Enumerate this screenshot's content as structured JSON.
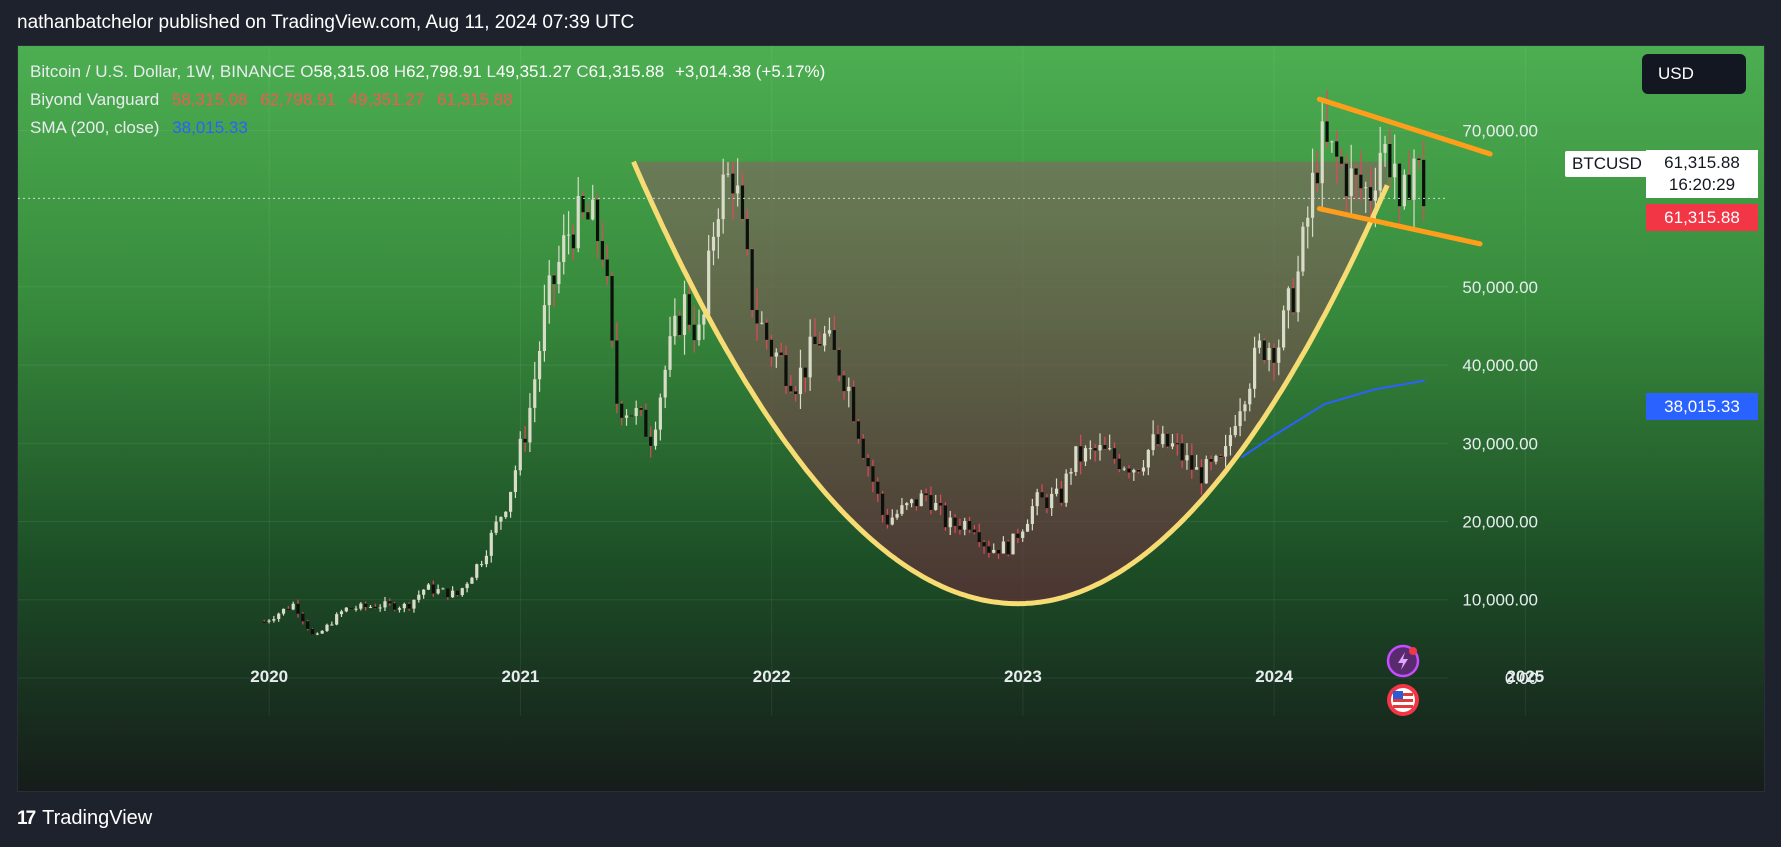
{
  "header": {
    "published": "nathanbatchelor published on TradingView.com, Aug 11, 2024 07:39 UTC"
  },
  "legend": {
    "title": "Bitcoin / U.S. Dollar, 1W, BINANCE",
    "o_label": "O",
    "o": "58,315.08",
    "h_label": "H",
    "h": "62,798.91",
    "l_label": "L",
    "l": "49,351.27",
    "c_label": "C",
    "c": "61,315.88",
    "change": "+3,014.38 (+5.17%)",
    "indicator_name": "Biyond Vanguard",
    "ind_o": "58,315.08",
    "ind_h": "62,798.91",
    "ind_l": "49,351.27",
    "ind_c": "61,315.88",
    "sma_name": "SMA (200, close)",
    "sma_value": "38,015.33"
  },
  "currency_button": "USD",
  "price_tags": {
    "symbol": "BTCUSD",
    "last": "61,315.88",
    "countdown": "16:20:29",
    "red": "61,315.88",
    "blue": "38,015.33"
  },
  "footer": {
    "logo_text": "TradingView"
  },
  "colors": {
    "up": "#d9dcc7",
    "down": "#0c0f0c",
    "wick_red": "#e0485a",
    "cup": "#f7dc74",
    "flag": "#ff9e1a",
    "sma": "#2962ff"
  },
  "chart_data": {
    "type": "candlestick",
    "symbol": "BTCUSD",
    "interval": "1W",
    "x_ticks": [
      "2020",
      "2021",
      "2022",
      "2023",
      "2024",
      "2025"
    ],
    "x_range": [
      2019.0,
      2025.95
    ],
    "y_ticks": [
      "0.00",
      "10,000.00",
      "20,000.00",
      "30,000.00",
      "40,000.00",
      "50,000.00",
      "70,000.00"
    ],
    "y_range": [
      -8700,
      80800
    ],
    "last_price": 61315.88,
    "close_path": [
      [
        2019.98,
        7200
      ],
      [
        2020.1,
        9500
      ],
      [
        2020.18,
        5000
      ],
      [
        2020.3,
        8800
      ],
      [
        2020.45,
        9300
      ],
      [
        2020.55,
        9200
      ],
      [
        2020.62,
        11500
      ],
      [
        2020.75,
        10600
      ],
      [
        2020.85,
        15500
      ],
      [
        2020.95,
        23000
      ],
      [
        2021.03,
        33000
      ],
      [
        2021.1,
        47000
      ],
      [
        2021.2,
        58000
      ],
      [
        2021.28,
        58500
      ],
      [
        2021.33,
        55000
      ],
      [
        2021.38,
        35500
      ],
      [
        2021.45,
        34000
      ],
      [
        2021.52,
        31000
      ],
      [
        2021.58,
        40000
      ],
      [
        2021.65,
        48000
      ],
      [
        2021.72,
        43000
      ],
      [
        2021.78,
        61000
      ],
      [
        2021.85,
        65000
      ],
      [
        2021.88,
        57000
      ],
      [
        2021.93,
        47000
      ],
      [
        2022.0,
        42000
      ],
      [
        2022.1,
        38000
      ],
      [
        2022.2,
        44000
      ],
      [
        2022.3,
        38000
      ],
      [
        2022.36,
        30000
      ],
      [
        2022.45,
        20000
      ],
      [
        2022.55,
        22000
      ],
      [
        2022.62,
        23500
      ],
      [
        2022.7,
        19500
      ],
      [
        2022.8,
        20000
      ],
      [
        2022.86,
        16500
      ],
      [
        2022.95,
        16800
      ],
      [
        2023.05,
        22500
      ],
      [
        2023.15,
        23000
      ],
      [
        2023.2,
        28000
      ],
      [
        2023.3,
        29000
      ],
      [
        2023.45,
        27000
      ],
      [
        2023.52,
        30000
      ],
      [
        2023.6,
        29500
      ],
      [
        2023.7,
        26000
      ],
      [
        2023.8,
        27500
      ],
      [
        2023.85,
        34500
      ],
      [
        2023.95,
        42500
      ],
      [
        2024.02,
        43000
      ],
      [
        2024.1,
        52000
      ],
      [
        2024.18,
        68000
      ],
      [
        2024.25,
        66000
      ],
      [
        2024.32,
        63000
      ],
      [
        2024.38,
        62000
      ],
      [
        2024.42,
        68000
      ],
      [
        2024.48,
        66000
      ],
      [
        2024.5,
        57000
      ],
      [
        2024.55,
        67500
      ],
      [
        2024.6,
        61316
      ]
    ],
    "sma_path": [
      [
        2023.87,
        28200
      ],
      [
        2024.0,
        31000
      ],
      [
        2024.2,
        35000
      ],
      [
        2024.4,
        36900
      ],
      [
        2024.6,
        38015
      ]
    ],
    "cup": {
      "left_rim": [
        2021.45,
        66000
      ],
      "bottom": [
        2022.98,
        9500
      ],
      "right_rim": [
        2024.45,
        63000
      ]
    },
    "flag_upper": [
      [
        2024.18,
        74000
      ],
      [
        2024.86,
        67000
      ]
    ],
    "flag_lower": [
      [
        2024.18,
        60000
      ],
      [
        2024.82,
        55500
      ]
    ]
  }
}
